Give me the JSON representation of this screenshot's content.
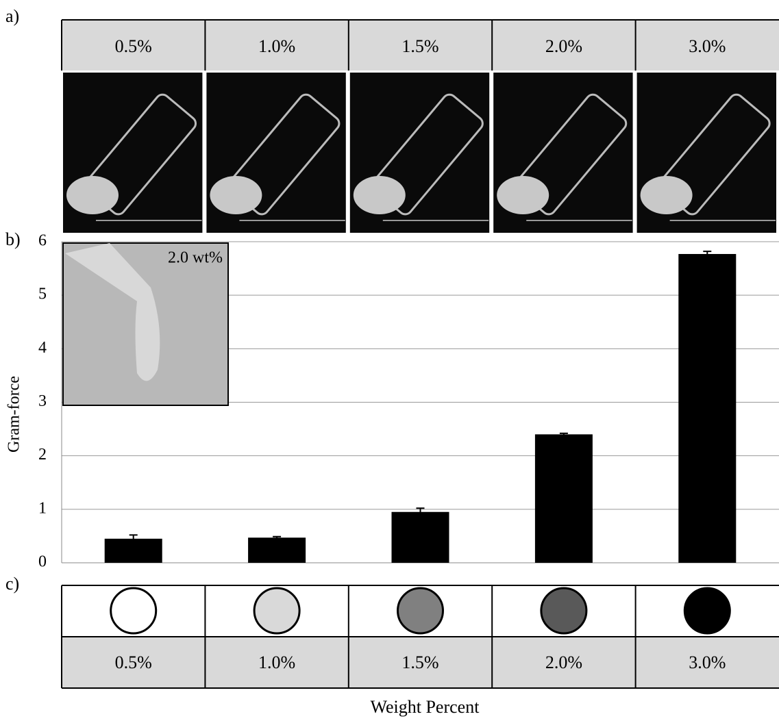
{
  "panel_labels": [
    "a)",
    "b)",
    "c)"
  ],
  "chart_data": {
    "type": "bar",
    "y_label": "Gram-force",
    "x_label": "Weight Percent",
    "categories": [
      "0.5%",
      "1.0%",
      "1.5%",
      "2.0%",
      "3.0%"
    ],
    "values": [
      0.45,
      0.47,
      0.95,
      2.4,
      5.77
    ],
    "errors": [
      0.07,
      0.02,
      0.07,
      0.02,
      0.05
    ],
    "color": "#000000",
    "ylim": [
      0,
      6
    ],
    "yticks": [
      0,
      1,
      2,
      3,
      4,
      5,
      6
    ],
    "grid": true,
    "inset_label": "2.0 wt%",
    "indicator_colors": [
      "#ffffff",
      "#d9d9d9",
      "#808080",
      "#595959",
      "#000000"
    ]
  }
}
